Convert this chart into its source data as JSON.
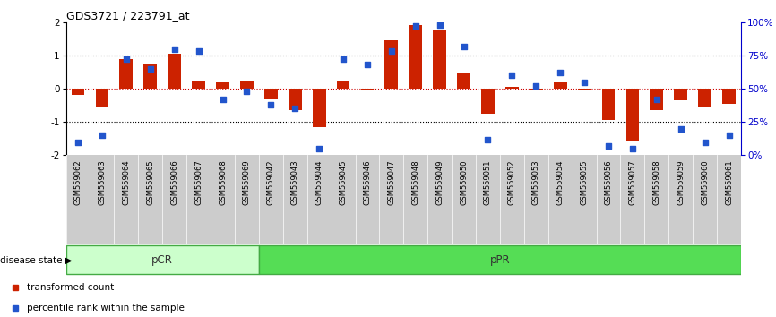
{
  "title": "GDS3721 / 223791_at",
  "samples": [
    "GSM559062",
    "GSM559063",
    "GSM559064",
    "GSM559065",
    "GSM559066",
    "GSM559067",
    "GSM559068",
    "GSM559069",
    "GSM559042",
    "GSM559043",
    "GSM559044",
    "GSM559045",
    "GSM559046",
    "GSM559047",
    "GSM559048",
    "GSM559049",
    "GSM559050",
    "GSM559051",
    "GSM559052",
    "GSM559053",
    "GSM559054",
    "GSM559055",
    "GSM559056",
    "GSM559057",
    "GSM559058",
    "GSM559059",
    "GSM559060",
    "GSM559061"
  ],
  "bar_values": [
    -0.18,
    -0.55,
    0.88,
    0.72,
    1.05,
    0.22,
    0.18,
    0.25,
    -0.3,
    -0.65,
    -1.15,
    0.22,
    -0.05,
    1.45,
    1.9,
    1.75,
    0.5,
    -0.75,
    0.05,
    -0.02,
    0.2,
    -0.05,
    -0.95,
    -1.55,
    -0.65,
    -0.35,
    -0.55,
    -0.45
  ],
  "percentile_values": [
    10,
    15,
    72,
    65,
    80,
    78,
    42,
    48,
    38,
    35,
    5,
    72,
    68,
    78,
    97,
    98,
    82,
    12,
    60,
    52,
    62,
    55,
    7,
    5,
    42,
    20,
    10,
    15
  ],
  "pcr_count": 8,
  "ppr_count": 20,
  "group_colors": [
    "#ccffcc",
    "#55dd55"
  ],
  "bar_color": "#cc2200",
  "dot_color": "#2255cc",
  "ylim": [
    -2,
    2
  ],
  "yticks": [
    -2,
    -1,
    0,
    1,
    2
  ],
  "right_yticks": [
    0,
    25,
    50,
    75,
    100
  ],
  "right_yticklabels": [
    "0%",
    "25%",
    "50%",
    "75%",
    "100%"
  ],
  "hlines_dotted": [
    -1,
    1
  ],
  "hline_zero_color": "#cc0000",
  "legend_bar_label": "transformed count",
  "legend_dot_label": "percentile rank within the sample",
  "disease_state_label": "disease state",
  "background_color": "#ffffff",
  "right_axis_color": "#0000cc",
  "tick_label_bg": "#cccccc"
}
